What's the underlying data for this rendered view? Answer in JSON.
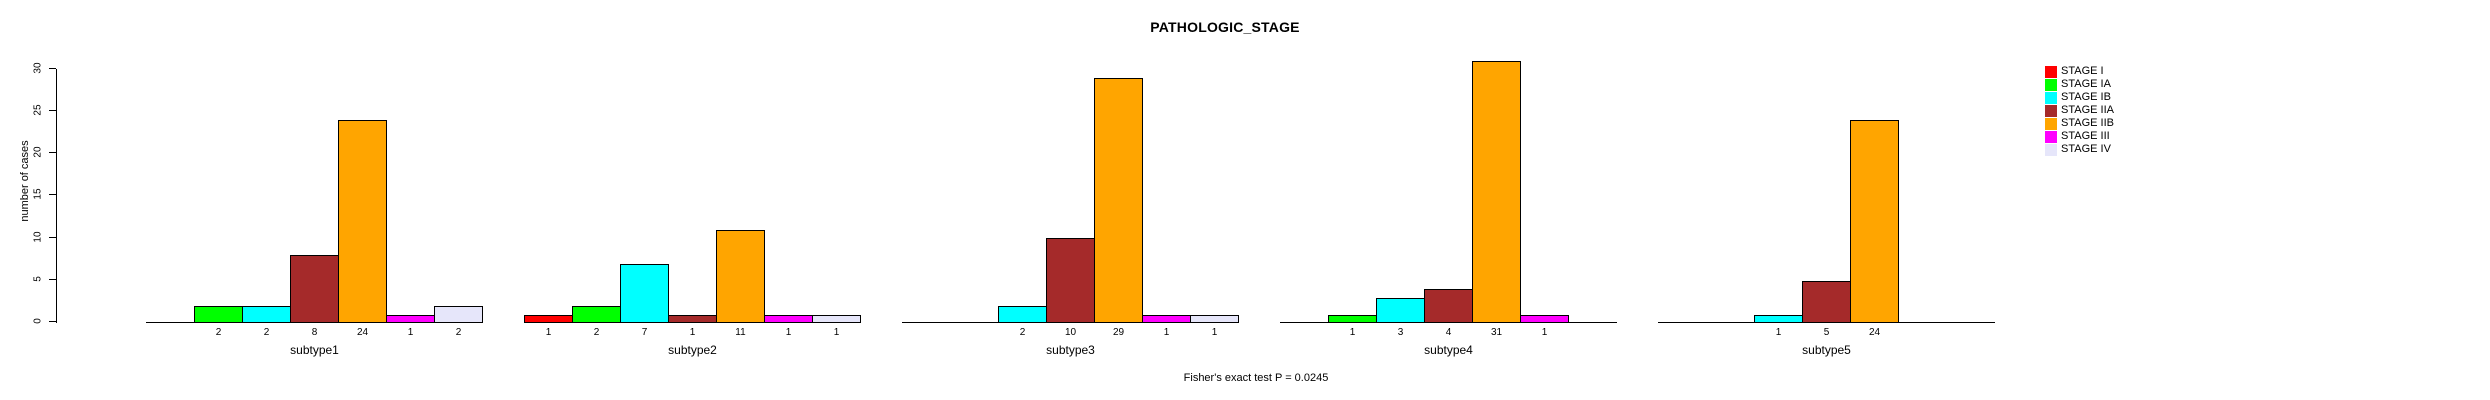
{
  "chart_data": {
    "type": "bar",
    "title": "PATHOLOGIC_STAGE",
    "ylabel": "number of cases",
    "footer": "Fisher's exact test P = 0.0245",
    "ylim": [
      0,
      30
    ],
    "yticks": [
      0,
      5,
      10,
      15,
      20,
      25,
      30
    ],
    "grid": false,
    "legend_position": "right",
    "legend": [
      {
        "label": "STAGE I",
        "color": "#FF0000"
      },
      {
        "label": "STAGE IA",
        "color": "#00FF00"
      },
      {
        "label": "STAGE IB",
        "color": "#00FFFF"
      },
      {
        "label": "STAGE IIA",
        "color": "#A52A2A"
      },
      {
        "label": "STAGE IIB",
        "color": "#FFA500"
      },
      {
        "label": "STAGE III",
        "color": "#FF00FF"
      },
      {
        "label": "STAGE IV",
        "color": "#E6E6FA"
      }
    ],
    "categories": [
      "subtype1",
      "subtype2",
      "subtype3",
      "subtype4",
      "subtype5"
    ],
    "panels": [
      {
        "category": "subtype1",
        "values": [
          0,
          2,
          2,
          8,
          24,
          1,
          2
        ]
      },
      {
        "category": "subtype2",
        "values": [
          1,
          2,
          7,
          1,
          11,
          1,
          1
        ]
      },
      {
        "category": "subtype3",
        "values": [
          0,
          0,
          2,
          10,
          29,
          1,
          1
        ]
      },
      {
        "category": "subtype4",
        "values": [
          0,
          1,
          3,
          4,
          31,
          1,
          0
        ]
      },
      {
        "category": "subtype5",
        "values": [
          0,
          0,
          1,
          5,
          24,
          0,
          0
        ]
      }
    ]
  }
}
